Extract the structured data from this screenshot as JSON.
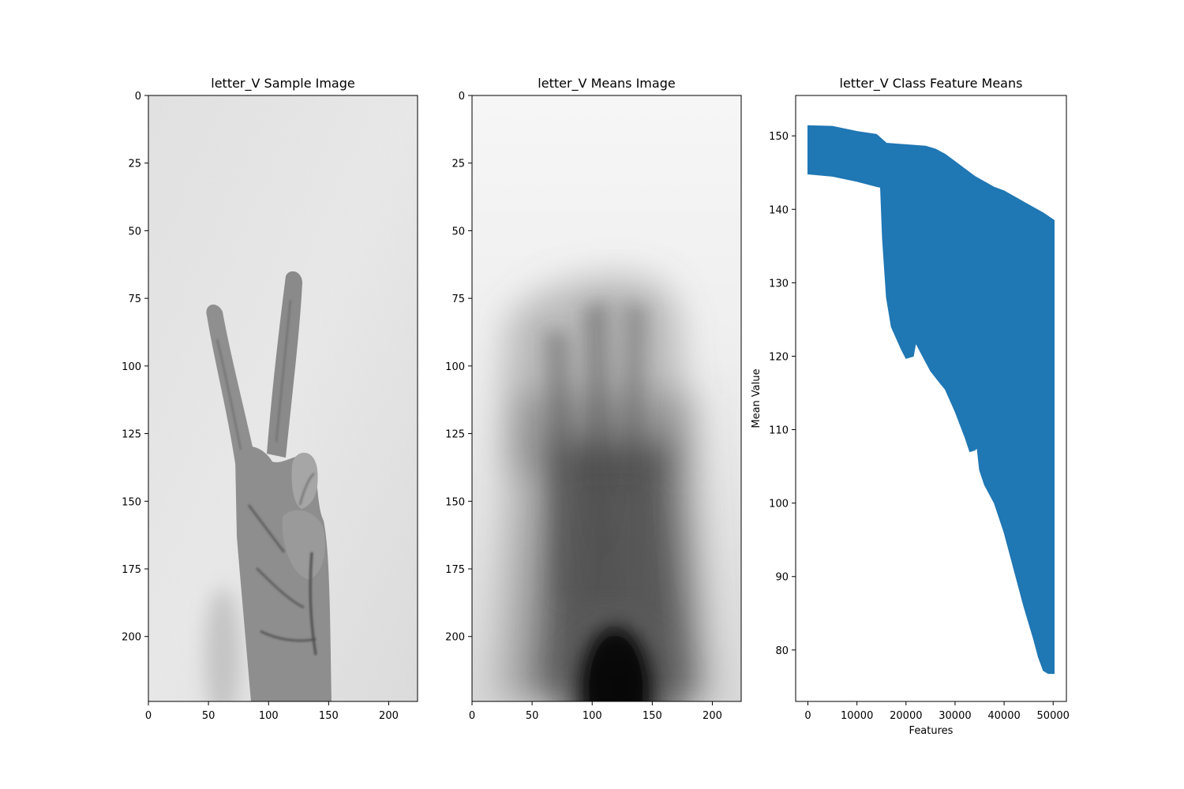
{
  "panels": [
    {
      "title": "letter_V Sample Image",
      "x_ticks": [
        "0",
        "50",
        "100",
        "150",
        "200"
      ],
      "y_ticks": [
        "0",
        "25",
        "50",
        "75",
        "100",
        "125",
        "150",
        "175",
        "200"
      ]
    },
    {
      "title": "letter_V Means Image",
      "x_ticks": [
        "0",
        "50",
        "100",
        "150",
        "200"
      ],
      "y_ticks": [
        "0",
        "25",
        "50",
        "75",
        "100",
        "125",
        "150",
        "175",
        "200"
      ]
    }
  ],
  "chart_data": [
    {
      "type": "image",
      "title": "letter_V Sample Image",
      "x_ticks": [
        0,
        50,
        100,
        150,
        200
      ],
      "y_ticks": [
        0,
        25,
        50,
        75,
        100,
        125,
        150,
        175,
        200
      ],
      "xlim": [
        0,
        224
      ],
      "ylim": [
        224,
        0
      ],
      "content": "grayscale photo of a hand showing a V sign"
    },
    {
      "type": "image",
      "title": "letter_V Means Image",
      "x_ticks": [
        0,
        50,
        100,
        150,
        200
      ],
      "y_ticks": [
        0,
        25,
        50,
        75,
        100,
        125,
        150,
        175,
        200
      ],
      "xlim": [
        0,
        224
      ],
      "ylim": [
        224,
        0
      ],
      "content": "blurred grayscale mean image, dark region at bottom center"
    },
    {
      "type": "area",
      "title": "letter_V Class Feature Means",
      "xlabel": "Features",
      "ylabel": "Mean Value",
      "xlim": [
        -2500,
        52700
      ],
      "ylim": [
        73,
        155.5
      ],
      "x_ticks": [
        0,
        10000,
        20000,
        30000,
        40000,
        50000
      ],
      "y_ticks": [
        80,
        90,
        100,
        110,
        120,
        130,
        140,
        150
      ],
      "color": "#1f77b4",
      "upper": [
        [
          0,
          151.4
        ],
        [
          5000,
          151.3
        ],
        [
          10000,
          150.6
        ],
        [
          14000,
          150.2
        ],
        [
          16000,
          149.0
        ],
        [
          20000,
          148.8
        ],
        [
          24000,
          148.6
        ],
        [
          26000,
          148.2
        ],
        [
          28000,
          147.5
        ],
        [
          30000,
          146.5
        ],
        [
          34000,
          144.5
        ],
        [
          38000,
          143.0
        ],
        [
          40000,
          142.5
        ],
        [
          44000,
          141.0
        ],
        [
          48000,
          139.5
        ],
        [
          50200,
          138.5
        ]
      ],
      "lower": [
        [
          0,
          144.8
        ],
        [
          5000,
          144.5
        ],
        [
          10000,
          143.8
        ],
        [
          14000,
          143.1
        ],
        [
          14800,
          143.0
        ],
        [
          15200,
          136.0
        ],
        [
          16000,
          128.0
        ],
        [
          17000,
          124.0
        ],
        [
          19000,
          121.0
        ],
        [
          20000,
          119.7
        ],
        [
          21500,
          120.0
        ],
        [
          22000,
          121.8
        ],
        [
          23000,
          120.5
        ],
        [
          25000,
          118.0
        ],
        [
          27000,
          116.3
        ],
        [
          28000,
          115.5
        ],
        [
          30000,
          112.5
        ],
        [
          32000,
          109.0
        ],
        [
          33000,
          107.0
        ],
        [
          34000,
          107.2
        ],
        [
          34500,
          107.5
        ],
        [
          35000,
          104.5
        ],
        [
          36000,
          102.5
        ],
        [
          38000,
          100.0
        ],
        [
          40000,
          96.0
        ],
        [
          42000,
          91.0
        ],
        [
          44000,
          86.0
        ],
        [
          46000,
          81.5
        ],
        [
          47000,
          79.0
        ],
        [
          48000,
          77.2
        ],
        [
          49000,
          76.8
        ],
        [
          50200,
          76.8
        ]
      ]
    }
  ]
}
